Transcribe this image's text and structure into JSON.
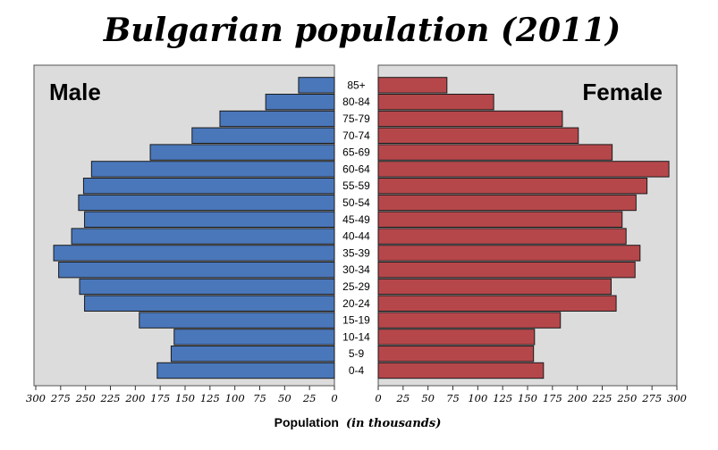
{
  "title": "Bulgarian population (2011)",
  "chart_data": {
    "type": "bar",
    "orientation": "horizontal",
    "layout": "population-pyramid",
    "categories": [
      "0-4",
      "5-9",
      "10-14",
      "15-19",
      "20-24",
      "25-29",
      "30-34",
      "35-39",
      "40-44",
      "45-49",
      "50-54",
      "55-59",
      "60-64",
      "65-69",
      "70-74",
      "75-79",
      "80-84",
      "85+"
    ],
    "series": [
      {
        "name": "Male",
        "color": "#4a77ba",
        "values": [
          178,
          164,
          161,
          196,
          251,
          256,
          277,
          282,
          264,
          251,
          257,
          252,
          244,
          185,
          143,
          115,
          69,
          36
        ]
      },
      {
        "name": "Female",
        "color": "#b5474b",
        "values": [
          166,
          156,
          157,
          183,
          239,
          234,
          258,
          263,
          249,
          245,
          259,
          270,
          292,
          235,
          201,
          185,
          116,
          69
        ]
      }
    ],
    "xlabel": "Population",
    "xlabel_unit": "(in thousands)",
    "xlim": [
      0,
      300
    ],
    "xticks": [
      0,
      25,
      50,
      75,
      100,
      125,
      150,
      175,
      200,
      225,
      250,
      275,
      300
    ],
    "panel_background": "#dcdcdc",
    "grid": false,
    "legend": "side labels inside panels (Male top-left, Female top-right)"
  }
}
